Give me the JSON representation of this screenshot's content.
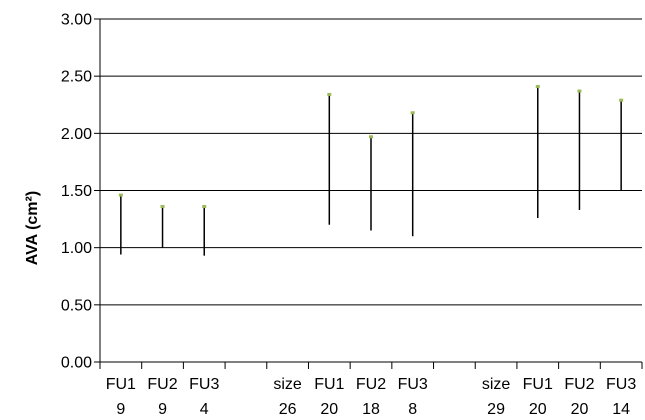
{
  "chart_data": {
    "type": "bar",
    "title": "",
    "xlabel": "",
    "ylabel": "AVA (cm²)",
    "ylim": [
      0,
      3
    ],
    "ytick_labels": [
      "0.00",
      "0.50",
      "1.00",
      "1.50",
      "2.00",
      "2.50",
      "3.00"
    ],
    "grid": true,
    "legend": "none",
    "colors": {
      "range_line": "#000000",
      "top_marker": "#9bbb59",
      "grid": "#000000"
    },
    "categories": [
      {
        "label": "FU1",
        "n": "9",
        "low": 0.94,
        "high": 1.46
      },
      {
        "label": "FU2",
        "n": "9",
        "low": 1.0,
        "high": 1.36
      },
      {
        "label": "FU3",
        "n": "4",
        "low": 0.93,
        "high": 1.36
      },
      {
        "label": "",
        "n": "",
        "low": null,
        "high": null
      },
      {
        "label": "size",
        "n": "26",
        "low": null,
        "high": null
      },
      {
        "label": "FU1",
        "n": "20",
        "low": 1.2,
        "high": 2.34
      },
      {
        "label": "FU2",
        "n": "18",
        "low": 1.15,
        "high": 1.97
      },
      {
        "label": "FU3",
        "n": "8",
        "low": 1.1,
        "high": 2.18
      },
      {
        "label": "",
        "n": "",
        "low": null,
        "high": null
      },
      {
        "label": "size",
        "n": "29",
        "low": null,
        "high": null
      },
      {
        "label": "FU1",
        "n": "20",
        "low": 1.26,
        "high": 2.41
      },
      {
        "label": "FU2",
        "n": "20",
        "low": 1.33,
        "high": 2.37
      },
      {
        "label": "FU3",
        "n": "14",
        "low": 1.5,
        "high": 2.29
      }
    ]
  }
}
